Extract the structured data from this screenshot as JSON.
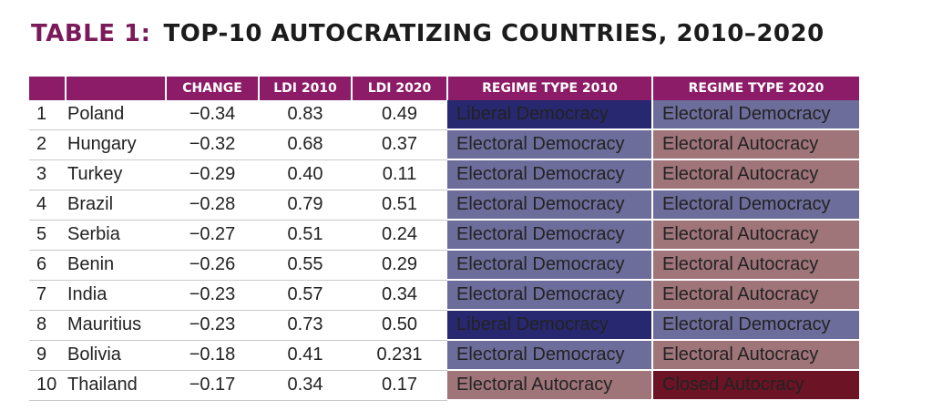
{
  "title": {
    "number": "TABLE 1:",
    "text": "TOP-10 AUTOCRATIZING COUNTRIES, 2010–2020"
  },
  "headers": [
    "",
    "",
    "CHANGE",
    "LDI 2010",
    "LDI 2020",
    "REGIME TYPE 2010",
    "REGIME TYPE 2020"
  ],
  "colors": {
    "header_bg": "#8c1c68",
    "Liberal Democracy": "#282870",
    "Electoral Democracy": "#6d6d9c",
    "Electoral Autocracy": "#a0757a",
    "Closed Autocracy": "#6c1325"
  },
  "rows": [
    {
      "rank": "1",
      "country": "Poland",
      "change": "−0.34",
      "ldi2010": "0.83",
      "ldi2020": "0.49",
      "regime2010": "Liberal Democracy",
      "regime2020": "Electoral Democracy"
    },
    {
      "rank": "2",
      "country": "Hungary",
      "change": "−0.32",
      "ldi2010": "0.68",
      "ldi2020": "0.37",
      "regime2010": "Electoral Democracy",
      "regime2020": "Electoral Autocracy"
    },
    {
      "rank": "3",
      "country": "Turkey",
      "change": "−0.29",
      "ldi2010": "0.40",
      "ldi2020": "0.11",
      "regime2010": "Electoral Democracy",
      "regime2020": "Electoral Autocracy"
    },
    {
      "rank": "4",
      "country": "Brazil",
      "change": "−0.28",
      "ldi2010": "0.79",
      "ldi2020": "0.51",
      "regime2010": "Electoral Democracy",
      "regime2020": "Electoral Democracy"
    },
    {
      "rank": "5",
      "country": "Serbia",
      "change": "−0.27",
      "ldi2010": "0.51",
      "ldi2020": "0.24",
      "regime2010": "Electoral Democracy",
      "regime2020": "Electoral Autocracy"
    },
    {
      "rank": "6",
      "country": "Benin",
      "change": "−0.26",
      "ldi2010": "0.55",
      "ldi2020": "0.29",
      "regime2010": "Electoral Democracy",
      "regime2020": "Electoral Autocracy"
    },
    {
      "rank": "7",
      "country": "India",
      "change": "−0.23",
      "ldi2010": "0.57",
      "ldi2020": "0.34",
      "regime2010": "Electoral Democracy",
      "regime2020": "Electoral Autocracy"
    },
    {
      "rank": "8",
      "country": "Mauritius",
      "change": "−0.23",
      "ldi2010": "0.73",
      "ldi2020": "0.50",
      "regime2010": "Liberal Democracy",
      "regime2020": "Electoral Democracy"
    },
    {
      "rank": "9",
      "country": "Bolivia",
      "change": "−0.18",
      "ldi2010": "0.41",
      "ldi2020": "0.231",
      "regime2010": "Electoral Democracy",
      "regime2020": "Electoral Autocracy"
    },
    {
      "rank": "10",
      "country": "Thailand",
      "change": "−0.17",
      "ldi2010": "0.34",
      "ldi2020": "0.17",
      "regime2010": "Electoral Autocracy",
      "regime2020": "Closed Autocracy"
    }
  ]
}
